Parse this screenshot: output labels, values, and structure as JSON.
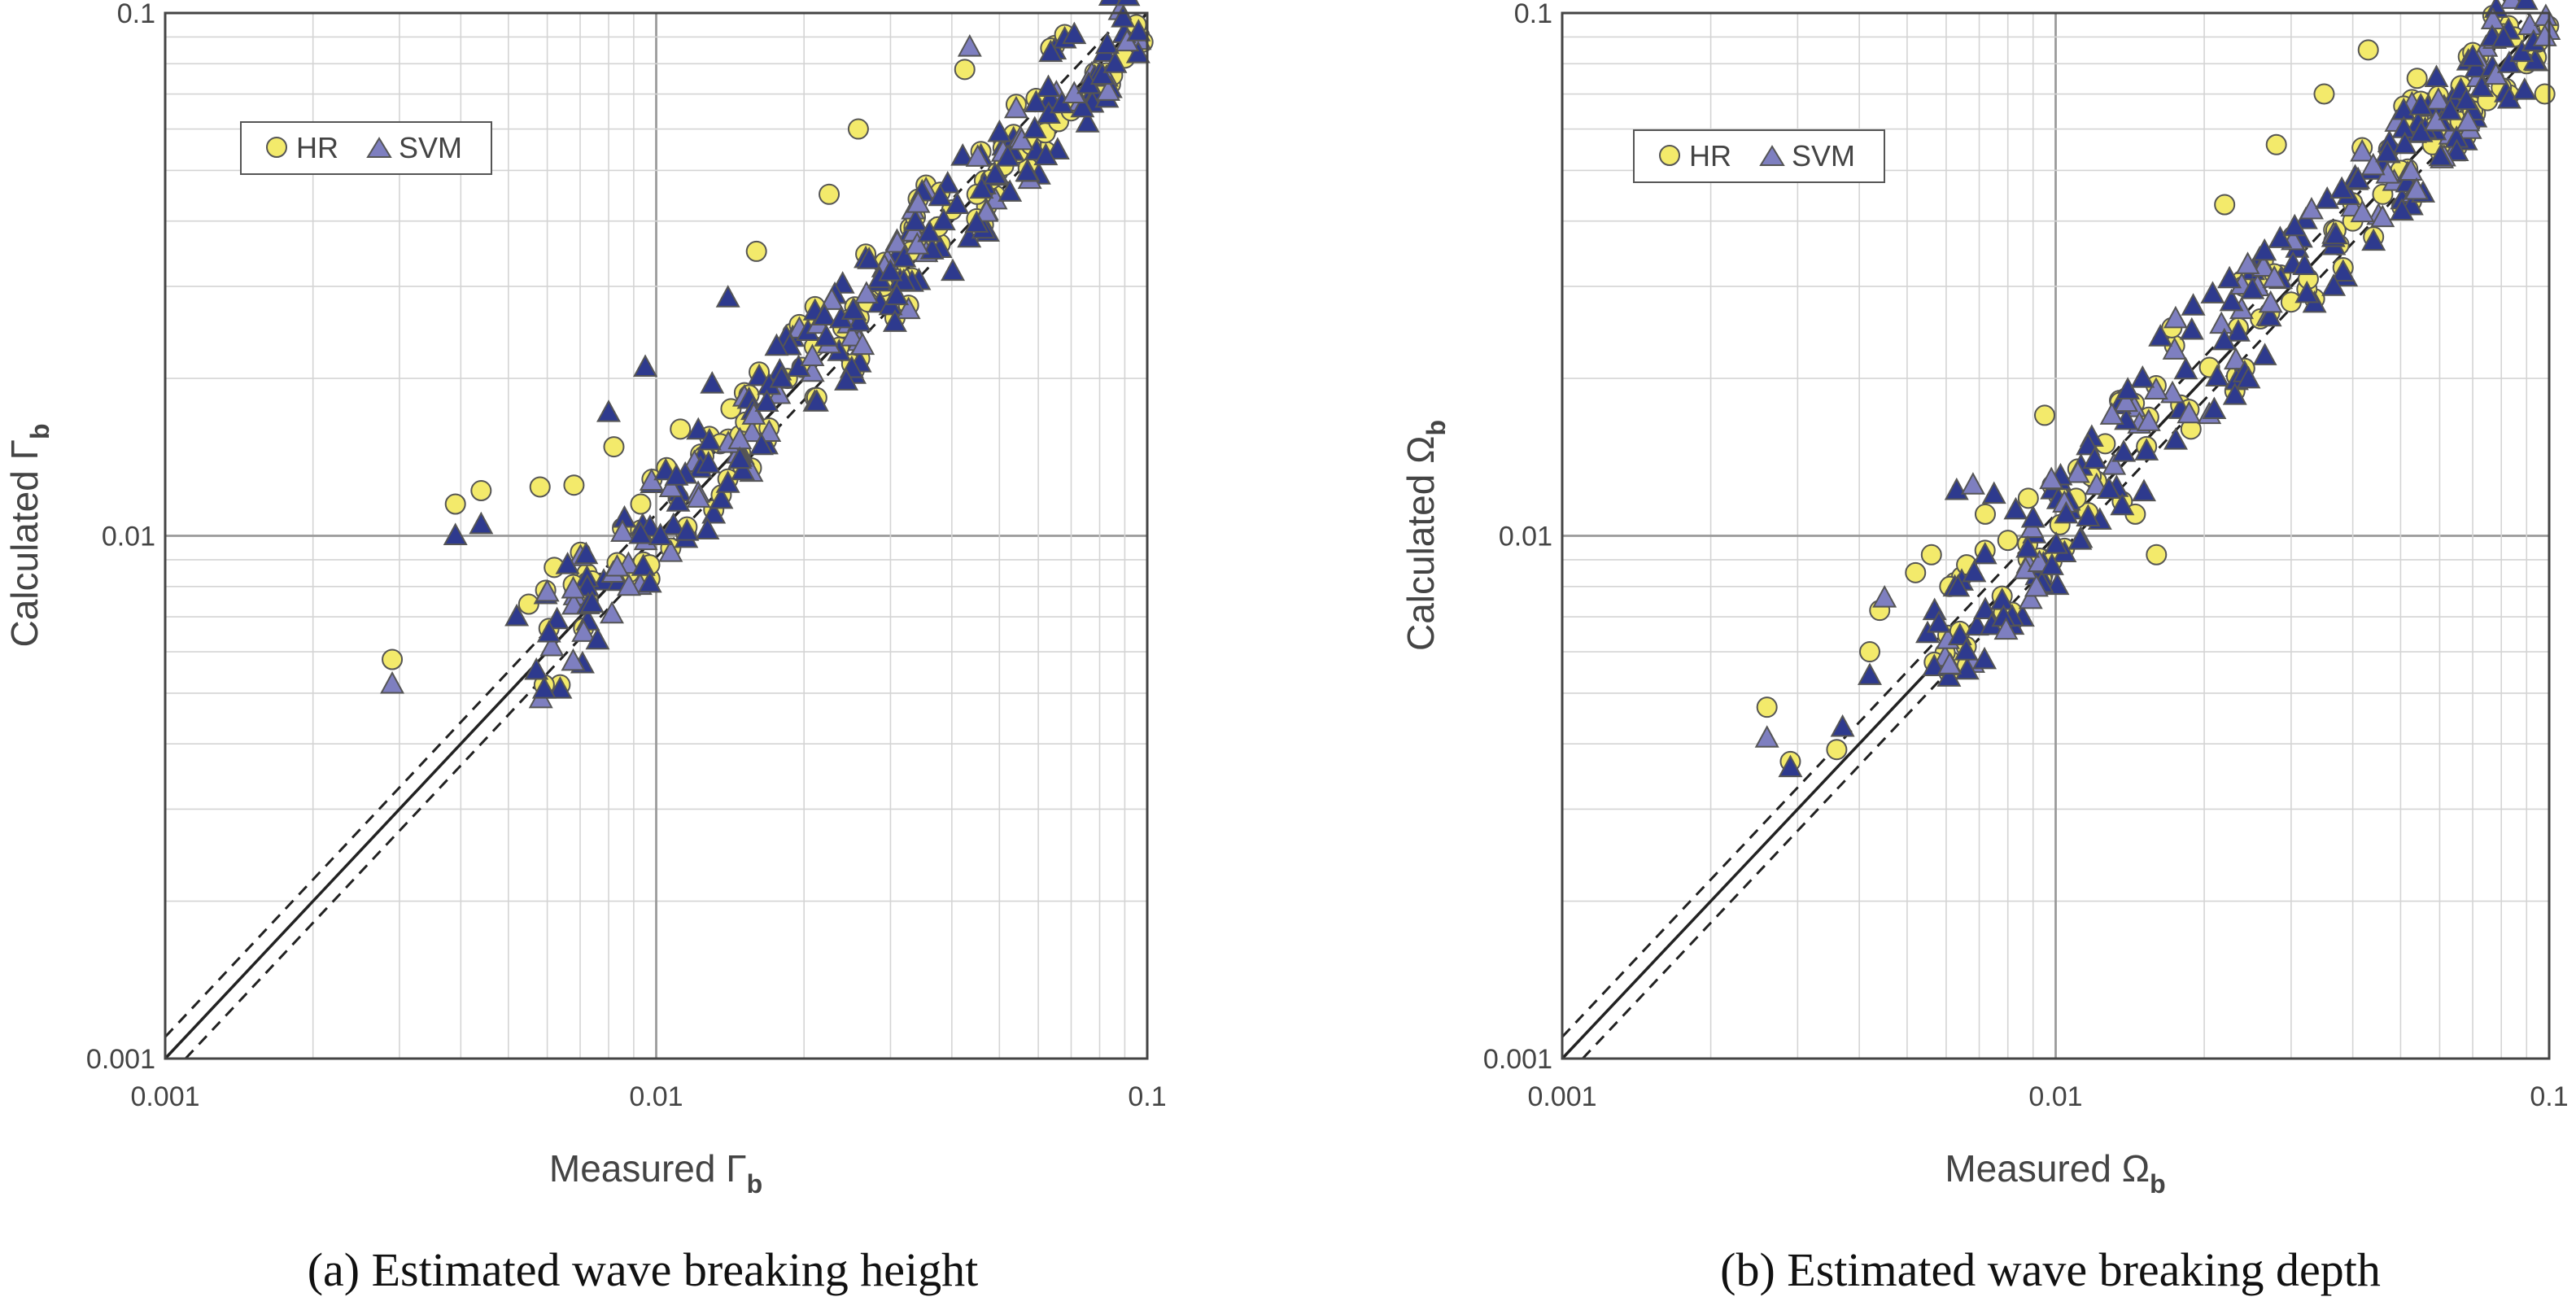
{
  "chart_data": [
    {
      "type": "scatter",
      "panel": "a",
      "xscale": "log",
      "yscale": "log",
      "xlim": [
        0.001,
        0.1
      ],
      "ylim": [
        0.001,
        0.1
      ],
      "xticks": [
        "0.001",
        "0.01",
        "0.1"
      ],
      "yticks": [
        "0.001",
        "0.01",
        "0.1"
      ],
      "xlabel_main": "Measured Γ",
      "xlabel_sub": "b",
      "ylabel_main": "Calculated Γ",
      "ylabel_sub": "b",
      "caption": "(a)  Estimated  wave  breaking  height",
      "legend": [
        {
          "name": "HR",
          "marker": "circle"
        },
        {
          "name": "SVM",
          "marker": "triangle"
        }
      ],
      "legend_position": "top-left",
      "reference_lines": [
        "y = x (solid)",
        "y = 1.1x (dashed)",
        "y = x/1.1 (dashed)"
      ],
      "colors": {
        "HR": "#f3ea6b",
        "SVM": "#7e7fc0",
        "dense_SVM": "#2e3a8e",
        "marker_edge": "#555555"
      },
      "series": [
        {
          "name": "HR",
          "x": [
            0.0029,
            0.0039,
            0.0044,
            0.0055,
            0.0058,
            0.0062,
            0.0068,
            0.0074,
            0.0082,
            0.0088,
            0.0093,
            0.0097,
            0.0105,
            0.0112,
            0.0125,
            0.0135,
            0.0142,
            0.0152,
            0.016,
            0.0172,
            0.0185,
            0.0198,
            0.021,
            0.0225,
            0.024,
            0.0258,
            0.027,
            0.029,
            0.031,
            0.033,
            0.035,
            0.0375,
            0.04,
            0.0425,
            0.045,
            0.048,
            0.051,
            0.0545,
            0.058,
            0.062,
            0.066,
            0.07,
            0.075,
            0.08,
            0.085,
            0.09,
            0.095,
            0.098
          ],
          "y": [
            0.0058,
            0.0115,
            0.0122,
            0.0074,
            0.0124,
            0.0087,
            0.0125,
            0.0082,
            0.0148,
            0.0085,
            0.0115,
            0.0088,
            0.0135,
            0.016,
            0.0142,
            0.015,
            0.0175,
            0.0165,
            0.035,
            0.019,
            0.02,
            0.021,
            0.023,
            0.045,
            0.025,
            0.06,
            0.028,
            0.03,
            0.033,
            0.035,
            0.036,
            0.039,
            0.042,
            0.078,
            0.045,
            0.048,
            0.051,
            0.054,
            0.056,
            0.059,
            0.062,
            0.065,
            0.068,
            0.071,
            0.076,
            0.082,
            0.095,
            0.088
          ]
        },
        {
          "name": "SVM",
          "x": [
            0.0029,
            0.0039,
            0.0044,
            0.0052,
            0.006,
            0.0066,
            0.0072,
            0.008,
            0.0088,
            0.0095,
            0.0102,
            0.011,
            0.0122,
            0.013,
            0.014,
            0.0148,
            0.0158,
            0.0168,
            0.018,
            0.0195,
            0.0208,
            0.0222,
            0.0238,
            0.0252,
            0.0268,
            0.0285,
            0.03,
            0.032,
            0.034,
            0.036,
            0.0385,
            0.041,
            0.0435,
            0.046,
            0.049,
            0.052,
            0.0555,
            0.059,
            0.063,
            0.067,
            0.071,
            0.076,
            0.081,
            0.086,
            0.091,
            0.096
          ],
          "y": [
            0.0052,
            0.01,
            0.0105,
            0.007,
            0.0078,
            0.0088,
            0.0092,
            0.0172,
            0.008,
            0.021,
            0.01,
            0.013,
            0.0118,
            0.0195,
            0.0285,
            0.014,
            0.017,
            0.018,
            0.02,
            0.021,
            0.022,
            0.024,
            0.026,
            0.027,
            0.029,
            0.031,
            0.032,
            0.034,
            0.036,
            0.038,
            0.04,
            0.043,
            0.086,
            0.046,
            0.049,
            0.053,
            0.057,
            0.06,
            0.064,
            0.067,
            0.07,
            0.073,
            0.076,
            0.08,
            0.088,
            0.092
          ]
        }
      ]
    },
    {
      "type": "scatter",
      "panel": "b",
      "xscale": "log",
      "yscale": "log",
      "xlim": [
        0.001,
        0.1
      ],
      "ylim": [
        0.001,
        0.1
      ],
      "xticks": [
        "0.001",
        "0.01",
        "0.1"
      ],
      "yticks": [
        "0.001",
        "0.01",
        "0.1"
      ],
      "xlabel_main": "Measured Ω",
      "xlabel_sub": "b",
      "ylabel_main": "Calculated Ω",
      "ylabel_sub": "b",
      "caption": "(b)  Estimated  wave  breaking  depth",
      "legend": [
        {
          "name": "HR",
          "marker": "circle"
        },
        {
          "name": "SVM",
          "marker": "triangle"
        }
      ],
      "legend_position": "top-left",
      "reference_lines": [
        "y = x (solid)",
        "y = 1.1x (dashed)",
        "y = x/1.1 (dashed)"
      ],
      "colors": {
        "HR": "#f3ea6b",
        "SVM": "#7e7fc0",
        "dense_SVM": "#2e3a8e",
        "marker_edge": "#555555"
      },
      "series": [
        {
          "name": "HR",
          "x": [
            0.0026,
            0.0029,
            0.0036,
            0.0042,
            0.0044,
            0.0052,
            0.0056,
            0.0061,
            0.0066,
            0.0072,
            0.008,
            0.0088,
            0.0095,
            0.0102,
            0.011,
            0.0118,
            0.0126,
            0.0135,
            0.0145,
            0.016,
            0.0172,
            0.0188,
            0.0205,
            0.022,
            0.024,
            0.026,
            0.028,
            0.03,
            0.0325,
            0.035,
            0.0375,
            0.04,
            0.043,
            0.046,
            0.05,
            0.054,
            0.058,
            0.062,
            0.066,
            0.07,
            0.075,
            0.08,
            0.085,
            0.09,
            0.095,
            0.098
          ],
          "y": [
            0.0047,
            0.0037,
            0.0039,
            0.006,
            0.0072,
            0.0085,
            0.0092,
            0.008,
            0.0088,
            0.011,
            0.0098,
            0.0118,
            0.017,
            0.0105,
            0.0118,
            0.013,
            0.015,
            0.018,
            0.011,
            0.0092,
            0.025,
            0.016,
            0.021,
            0.043,
            0.03,
            0.026,
            0.056,
            0.028,
            0.031,
            0.07,
            0.036,
            0.04,
            0.085,
            0.045,
            0.05,
            0.075,
            0.056,
            0.06,
            0.062,
            0.065,
            0.068,
            0.072,
            0.09,
            0.08,
            0.088,
            0.07
          ]
        },
        {
          "name": "SVM",
          "x": [
            0.0026,
            0.0029,
            0.0037,
            0.0042,
            0.0045,
            0.0055,
            0.0058,
            0.0063,
            0.0068,
            0.0075,
            0.0083,
            0.009,
            0.0098,
            0.0105,
            0.0112,
            0.012,
            0.013,
            0.014,
            0.015,
            0.0163,
            0.0175,
            0.019,
            0.0208,
            0.0225,
            0.0245,
            0.0265,
            0.0285,
            0.0305,
            0.033,
            0.0355,
            0.038,
            0.041,
            0.044,
            0.047,
            0.051,
            0.055,
            0.059,
            0.063,
            0.068,
            0.073,
            0.078,
            0.083,
            0.088,
            0.093,
            0.098
          ],
          "y": [
            0.0041,
            0.0036,
            0.0043,
            0.0054,
            0.0076,
            0.0065,
            0.0068,
            0.0122,
            0.0125,
            0.012,
            0.0112,
            0.0108,
            0.0128,
            0.011,
            0.0098,
            0.014,
            0.017,
            0.019,
            0.02,
            0.024,
            0.026,
            0.0275,
            0.029,
            0.031,
            0.033,
            0.035,
            0.037,
            0.039,
            0.042,
            0.044,
            0.046,
            0.048,
            0.051,
            0.054,
            0.056,
            0.059,
            0.062,
            0.065,
            0.068,
            0.072,
            0.076,
            0.08,
            0.084,
            0.088,
            0.09
          ]
        }
      ]
    }
  ]
}
